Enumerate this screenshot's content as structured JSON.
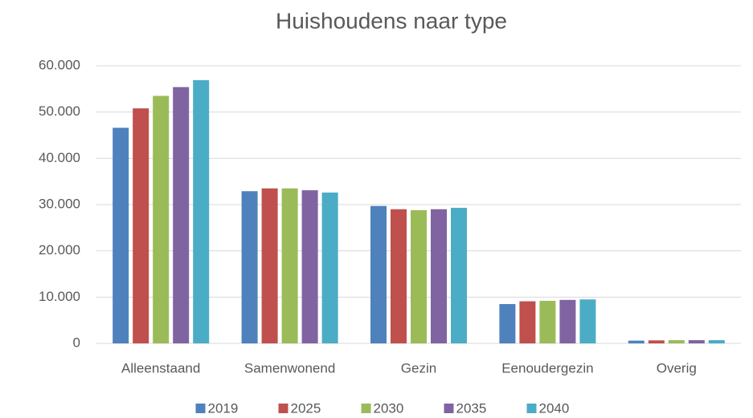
{
  "chart_data": {
    "type": "bar",
    "title": "Huishoudens naar type",
    "categories": [
      "Alleenstaand",
      "Samenwonend",
      "Gezin",
      "Eenoudergezin",
      "Overig"
    ],
    "series": [
      {
        "name": "2019",
        "color": "#4f81bd",
        "values": [
          46600,
          32900,
          29700,
          8500,
          600
        ]
      },
      {
        "name": "2025",
        "color": "#c0504d",
        "values": [
          50800,
          33500,
          29000,
          9100,
          650
        ]
      },
      {
        "name": "2030",
        "color": "#9bbb59",
        "values": [
          53500,
          33500,
          28800,
          9200,
          700
        ]
      },
      {
        "name": "2035",
        "color": "#8064a2",
        "values": [
          55400,
          33100,
          29000,
          9400,
          700
        ]
      },
      {
        "name": "2040",
        "color": "#4bacc6",
        "values": [
          56900,
          32600,
          29300,
          9500,
          700
        ]
      }
    ],
    "ylim": [
      0,
      60000
    ],
    "yticks": [
      0,
      {
        "value": 10000,
        "label": "10.000"
      },
      {
        "value": 20000,
        "label": "20.000"
      },
      {
        "value": 30000,
        "label": "30.000"
      },
      {
        "value": 40000,
        "label": "40.000"
      },
      {
        "value": 50000,
        "label": "50.000"
      },
      {
        "value": 60000,
        "label": "60.000"
      }
    ],
    "grid": true,
    "legend": "bottom"
  }
}
